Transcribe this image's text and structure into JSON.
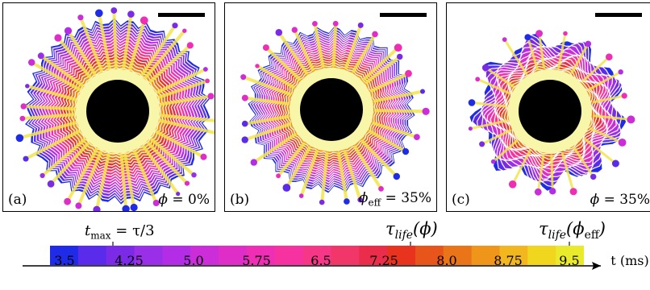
{
  "panels": [
    {
      "label": "(a)",
      "phi_text": "ϕ = 0%",
      "phi_symbol": "ϕ",
      "phi_sub": "",
      "phi_value": "= 0%"
    },
    {
      "label": "(b)",
      "phi_text": "ϕeff = 35%",
      "phi_symbol": "ϕ",
      "phi_sub": "eff",
      "phi_value": "= 35%"
    },
    {
      "label": "(c)",
      "phi_text": "ϕ = 35%",
      "phi_symbol": "ϕ",
      "phi_sub": "",
      "phi_value": "= 35%"
    }
  ],
  "colorbar": {
    "ticks": [
      "3.5",
      "4.25",
      "5.0",
      "5.75",
      "6.5",
      "7.25",
      "8.0",
      "8.75",
      "9.5"
    ],
    "unit_label": "t (ms)",
    "colors": [
      "#1f2be6",
      "#5a2bea",
      "#7b2be6",
      "#9a2fe8",
      "#b32ce6",
      "#cb2ed8",
      "#df2ec8",
      "#ee2fb5",
      "#f5329f",
      "#f63686",
      "#f1366a",
      "#ea2d4b",
      "#e8331e",
      "#e8551a",
      "#ea7418",
      "#ee951a",
      "#f2b61f",
      "#f1d61e",
      "#e9ea2c"
    ]
  },
  "annotations": {
    "tmax": {
      "symbol": "t",
      "sub": "max",
      "rest": " = τ/3"
    },
    "tau_life_phi": {
      "symbol": "τ",
      "sub": "life",
      "rest": "(ϕ)"
    },
    "tau_life_phi_eff": {
      "symbol": "τ",
      "sub": "life",
      "rest": "(ϕ",
      "rest_sub": "eff",
      "close": ")"
    }
  }
}
